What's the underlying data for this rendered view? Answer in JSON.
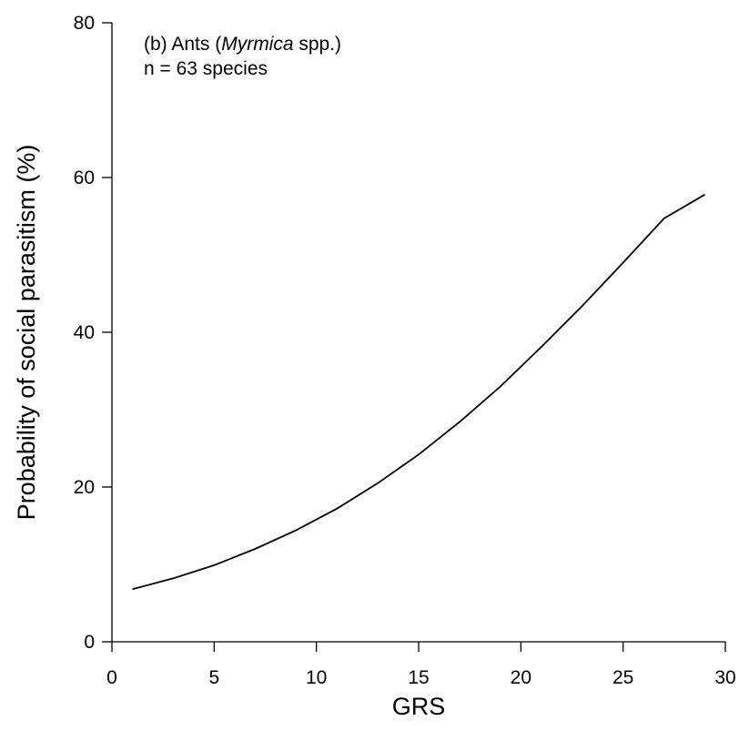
{
  "chart_data": {
    "type": "line",
    "xlabel": "GRS",
    "ylabel": "Probability of social parasitism (%)",
    "xlim": [
      0,
      30
    ],
    "ylim": [
      0,
      80
    ],
    "xticks": [
      "0",
      "5",
      "10",
      "15",
      "20",
      "25",
      "30"
    ],
    "yticks": [
      "0",
      "20",
      "40",
      "60",
      "80"
    ],
    "grid": false,
    "annotation": {
      "line1_prefix": "(b) Ants (",
      "line1_italic": "Myrmica",
      "line1_suffix": " spp.)",
      "line2": "n = 63 species"
    },
    "series": [
      {
        "x": [
          1,
          3,
          5,
          7,
          9,
          11,
          13,
          15,
          17,
          19,
          21,
          23,
          25,
          27,
          29
        ],
        "y": [
          6.8,
          8.2,
          9.9,
          12.0,
          14.4,
          17.2,
          20.5,
          24.2,
          28.4,
          33.0,
          38.1,
          43.4,
          49.0,
          54.7,
          57.8
        ]
      }
    ]
  }
}
